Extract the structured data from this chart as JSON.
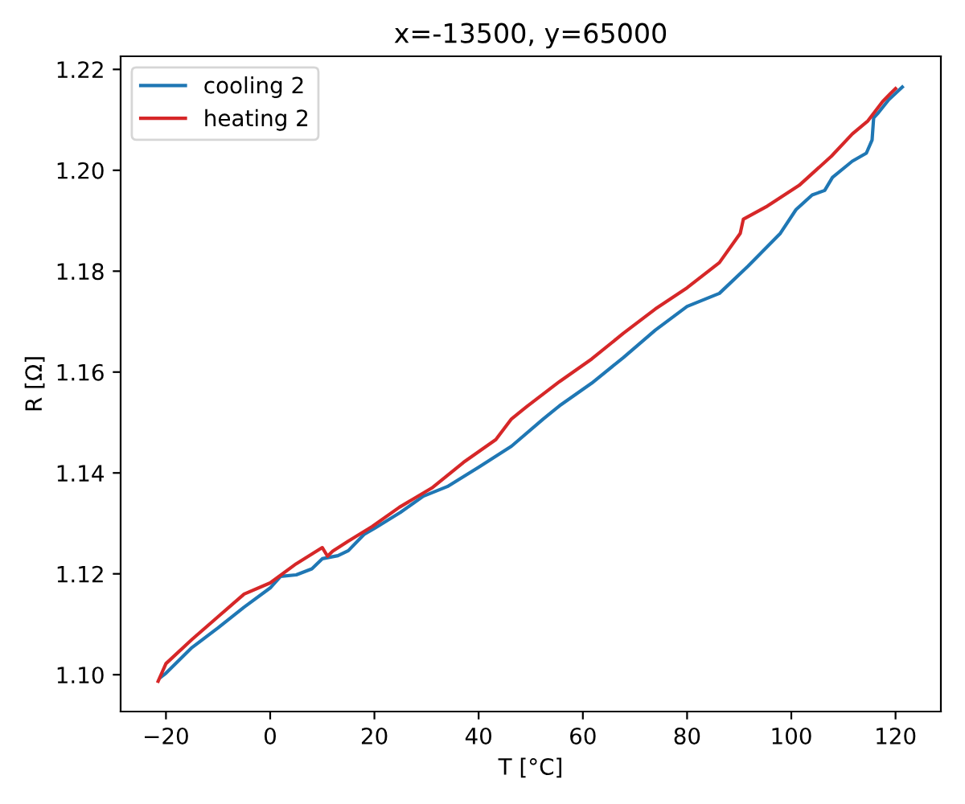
{
  "chart_data": {
    "type": "line",
    "title": "x=-13500, y=65000",
    "xlabel": "T [°C]",
    "ylabel": "R [Ω]",
    "xlim": [
      -28.7,
      128.7
    ],
    "ylim": [
      1.0927,
      1.2226
    ],
    "xticks": [
      {
        "value": -20,
        "label": "−20"
      },
      0,
      20,
      40,
      60,
      80,
      100,
      120
    ],
    "yticks": [
      {
        "value": 1.1,
        "label": "1.10"
      },
      {
        "value": 1.12,
        "label": "1.12"
      },
      {
        "value": 1.14,
        "label": "1.14"
      },
      {
        "value": 1.16,
        "label": "1.16"
      },
      {
        "value": 1.18,
        "label": "1.18"
      },
      {
        "value": 1.2,
        "label": "1.20"
      },
      {
        "value": 1.22,
        "label": "1.22"
      }
    ],
    "grid": false,
    "legend": "top left",
    "series": [
      {
        "name": "cooling 2",
        "color": "#1f77b4",
        "x": [
          121.3,
          118.7,
          116.7,
          115.8,
          115.5,
          114.4,
          111.7,
          107.9,
          106.4,
          104,
          100.9,
          97.9,
          91.7,
          86.2,
          80,
          73.9,
          67.8,
          61.7,
          55.5,
          52.4,
          46.3,
          40.1,
          34,
          29.4,
          25,
          20,
          18,
          15,
          13,
          10,
          8,
          5,
          2,
          0,
          -5,
          -10,
          -15,
          -20,
          -21
        ],
        "values": [
          1.2165,
          1.214,
          1.2114,
          1.2104,
          1.206,
          1.2034,
          1.2018,
          1.1986,
          1.196,
          1.1951,
          1.1922,
          1.1875,
          1.181,
          1.1756,
          1.173,
          1.1683,
          1.1629,
          1.1578,
          1.1533,
          1.1507,
          1.1453,
          1.1412,
          1.1373,
          1.1354,
          1.1322,
          1.129,
          1.1278,
          1.1246,
          1.1236,
          1.123,
          1.121,
          1.1198,
          1.1195,
          1.1172,
          1.1134,
          1.1093,
          1.1054,
          1.1003,
          1.0995
        ]
      },
      {
        "name": "heating 2",
        "color": "#d62728",
        "x": [
          -21.5,
          -20,
          -15,
          -10,
          -5,
          0,
          5,
          10,
          11,
          12,
          15,
          19.6,
          24.8,
          31,
          37.1,
          43.3,
          46.3,
          49.4,
          55.5,
          61.7,
          67.8,
          73.9,
          80,
          86.2,
          90.2,
          90.8,
          95.4,
          101.5,
          107.7,
          111.7,
          114.7,
          117.5,
          119,
          120
        ],
        "values": [
          1.0987,
          1.1022,
          1.107,
          1.1115,
          1.116,
          1.1182,
          1.122,
          1.1252,
          1.1235,
          1.1245,
          1.1265,
          1.1294,
          1.1332,
          1.137,
          1.1421,
          1.1466,
          1.1507,
          1.1533,
          1.1581,
          1.1626,
          1.1677,
          1.1725,
          1.1767,
          1.1817,
          1.1875,
          1.1903,
          1.1929,
          1.197,
          1.2028,
          1.2072,
          1.2098,
          1.2136,
          1.2152,
          1.2162
        ]
      }
    ]
  }
}
